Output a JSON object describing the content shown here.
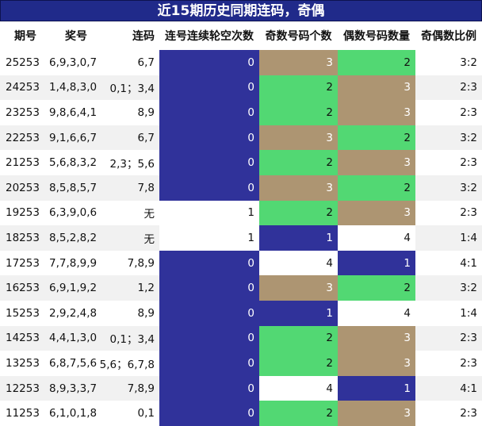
{
  "title": "近15期历史同期连码，奇偶",
  "headers": [
    "期号",
    "奖号",
    "连码",
    "连号连续轮空次数",
    "奇数号码个数",
    "偶数号码数量",
    "奇偶数比例"
  ],
  "colors": {
    "blue": "#30329a",
    "green": "#52d873",
    "tan": "#ad9572",
    "header_bg": "#202a8a"
  },
  "rows": [
    {
      "issue": "25253",
      "numbers": "6,9,3,0,7",
      "consec": "6,7",
      "skip": "0",
      "odd": "3",
      "even": "2",
      "ratio": "3:2"
    },
    {
      "issue": "24253",
      "numbers": "1,4,8,3,0",
      "consec": "0,1；3,4",
      "skip": "0",
      "odd": "2",
      "even": "3",
      "ratio": "2:3"
    },
    {
      "issue": "23253",
      "numbers": "9,8,6,4,1",
      "consec": "8,9",
      "skip": "0",
      "odd": "2",
      "even": "3",
      "ratio": "2:3"
    },
    {
      "issue": "22253",
      "numbers": "9,1,6,6,7",
      "consec": "6,7",
      "skip": "0",
      "odd": "3",
      "even": "2",
      "ratio": "3:2"
    },
    {
      "issue": "21253",
      "numbers": "5,6,8,3,2",
      "consec": "2,3；5,6",
      "skip": "0",
      "odd": "2",
      "even": "3",
      "ratio": "2:3"
    },
    {
      "issue": "20253",
      "numbers": "8,5,8,5,7",
      "consec": "7,8",
      "skip": "0",
      "odd": "3",
      "even": "2",
      "ratio": "3:2"
    },
    {
      "issue": "19253",
      "numbers": "6,3,9,0,6",
      "consec": "无",
      "skip": "1",
      "odd": "2",
      "even": "3",
      "ratio": "2:3"
    },
    {
      "issue": "18253",
      "numbers": "8,5,2,8,2",
      "consec": "无",
      "skip": "1",
      "odd": "1",
      "even": "4",
      "ratio": "1:4"
    },
    {
      "issue": "17253",
      "numbers": "7,7,8,9,9",
      "consec": "7,8,9",
      "skip": "0",
      "odd": "4",
      "even": "1",
      "ratio": "4:1"
    },
    {
      "issue": "16253",
      "numbers": "6,9,1,9,2",
      "consec": "1,2",
      "skip": "0",
      "odd": "3",
      "even": "2",
      "ratio": "3:2"
    },
    {
      "issue": "15253",
      "numbers": "2,9,2,4,8",
      "consec": "8,9",
      "skip": "0",
      "odd": "1",
      "even": "4",
      "ratio": "1:4"
    },
    {
      "issue": "14253",
      "numbers": "4,4,1,3,0",
      "consec": "0,1；3,4",
      "skip": "0",
      "odd": "2",
      "even": "3",
      "ratio": "2:3"
    },
    {
      "issue": "13253",
      "numbers": "6,8,7,5,6",
      "consec": "5,6；6,7,8",
      "skip": "0",
      "odd": "2",
      "even": "3",
      "ratio": "2:3"
    },
    {
      "issue": "12253",
      "numbers": "8,9,3,3,7",
      "consec": "7,8,9",
      "skip": "0",
      "odd": "4",
      "even": "1",
      "ratio": "4:1"
    },
    {
      "issue": "11253",
      "numbers": "6,1,0,1,8",
      "consec": "0,1",
      "skip": "0",
      "odd": "2",
      "even": "3",
      "ratio": "2:3"
    }
  ]
}
